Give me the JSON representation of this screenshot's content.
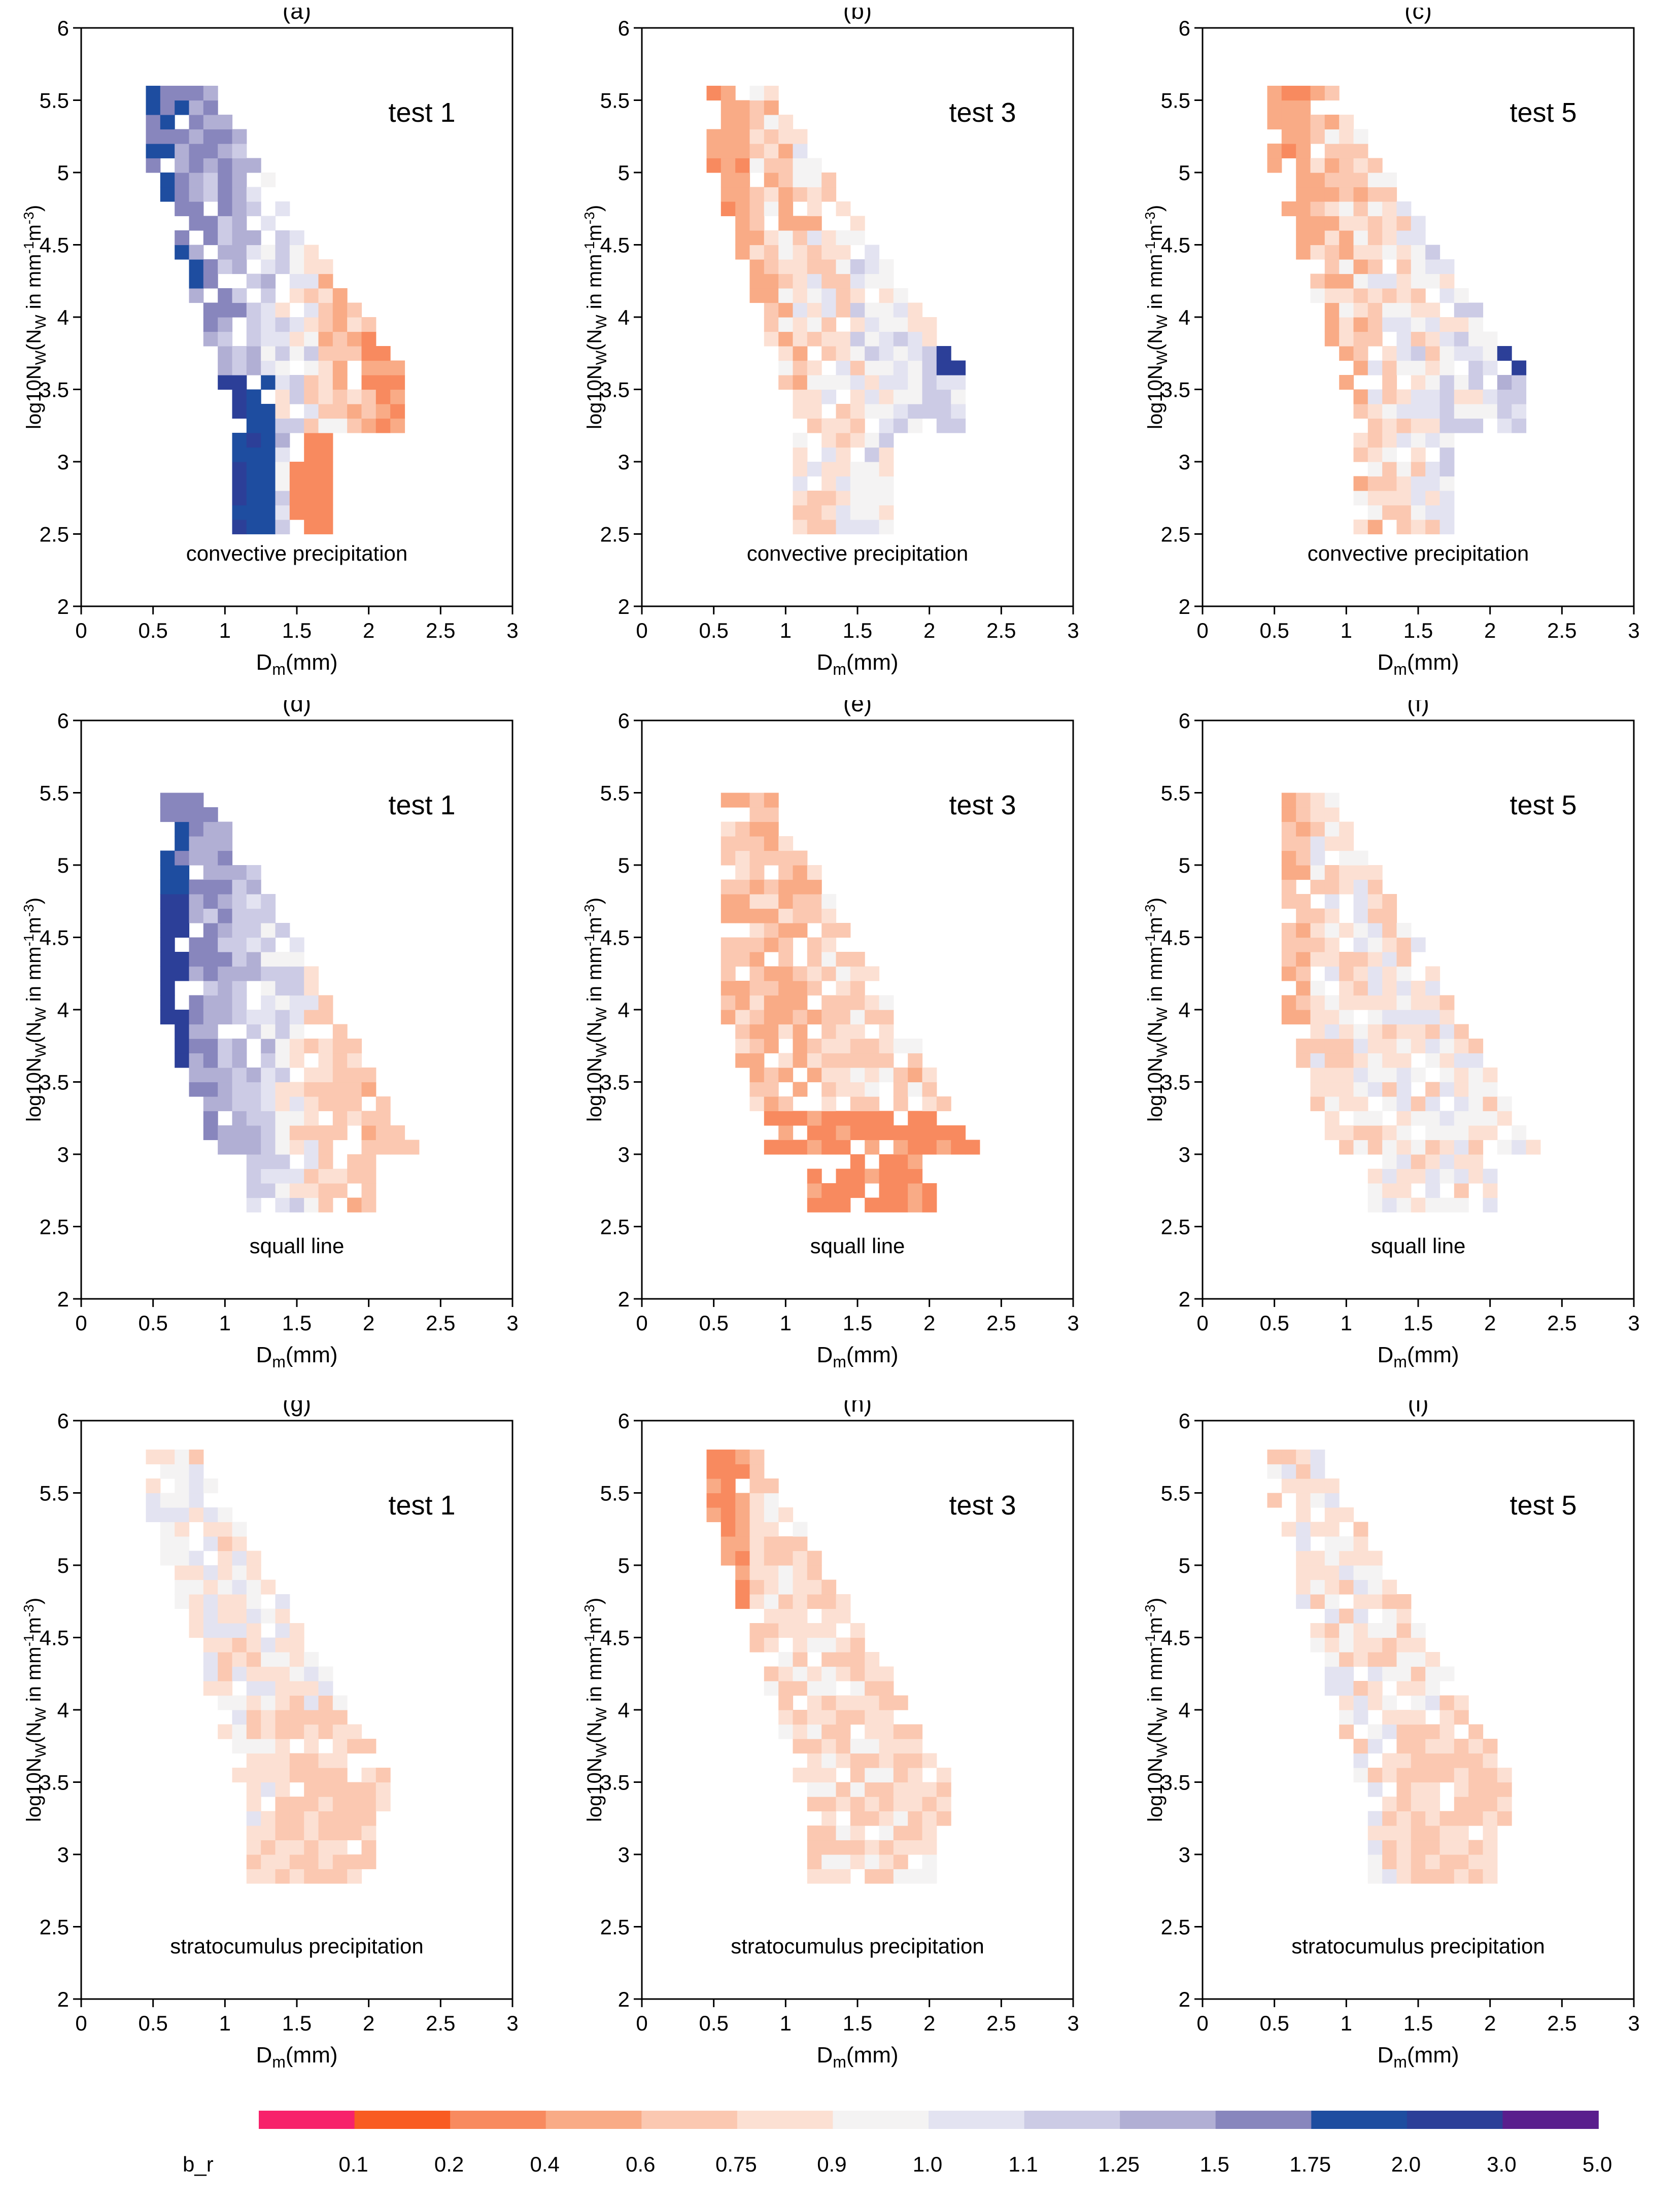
{
  "figure": {
    "x_label_main": "D",
    "x_label_sub": "m",
    "x_label_unit": "(mm)",
    "y_label_pre": "log10N",
    "y_label_sub": "W",
    "y_label_mid": "(N",
    "y_label_mid_sub": "W",
    "y_label_in": " in mm",
    "y_label_sup1": "-1",
    "y_label_m": "m",
    "y_label_sup2": "-3",
    "y_label_close": ")"
  },
  "legend": {
    "label": "b_r",
    "ticks": [
      "0.1",
      "0.2",
      "0.4",
      "0.6",
      "0.75",
      "0.9",
      "1.0",
      "1.1",
      "1.25",
      "1.5",
      "1.75",
      "2.0",
      "3.0",
      "5.0"
    ],
    "colors": [
      "#f7226b",
      "#f95b22",
      "#f88a5f",
      "#f9ab86",
      "#fbc8b1",
      "#fce0d3",
      "#f4f3f3",
      "#e3e3f1",
      "#cccbe5",
      "#b1afd4",
      "#8886bd",
      "#1e4da0",
      "#2c3f98",
      "#5a1e8d"
    ]
  },
  "chart_data": [
    {
      "type": "heatmap",
      "panel_label": "(a)",
      "test_label": "test 1",
      "regime": "convective precipitation",
      "xlim": [
        0,
        3
      ],
      "ylim": [
        2,
        6
      ],
      "x_ticks": [
        "0",
        "0.5",
        "1",
        "1.5",
        "2",
        "2.5",
        "3"
      ],
      "y_ticks": [
        "2",
        "2.5",
        "3",
        "3.5",
        "4",
        "4.5",
        "5",
        "5.5",
        "6"
      ]
    },
    {
      "type": "heatmap",
      "panel_label": "(b)",
      "test_label": "test 3",
      "regime": "convective precipitation",
      "xlim": [
        0,
        3
      ],
      "ylim": [
        2,
        6
      ],
      "x_ticks": [
        "0",
        "0.5",
        "1",
        "1.5",
        "2",
        "2.5",
        "3"
      ],
      "y_ticks": [
        "2",
        "2.5",
        "3",
        "3.5",
        "4",
        "4.5",
        "5",
        "5.5",
        "6"
      ]
    },
    {
      "type": "heatmap",
      "panel_label": "(c)",
      "test_label": "test 5",
      "regime": "convective precipitation",
      "xlim": [
        0,
        3
      ],
      "ylim": [
        2,
        6
      ],
      "x_ticks": [
        "0",
        "0.5",
        "1",
        "1.5",
        "2",
        "2.5",
        "3"
      ],
      "y_ticks": [
        "2",
        "2.5",
        "3",
        "3.5",
        "4",
        "4.5",
        "5",
        "5.5",
        "6"
      ]
    },
    {
      "type": "heatmap",
      "panel_label": "(d)",
      "test_label": "test 1",
      "regime": "squall line",
      "xlim": [
        0,
        3
      ],
      "ylim": [
        2,
        6
      ],
      "x_ticks": [
        "0",
        "0.5",
        "1",
        "1.5",
        "2",
        "2.5",
        "3"
      ],
      "y_ticks": [
        "2",
        "2.5",
        "3",
        "3.5",
        "4",
        "4.5",
        "5",
        "5.5",
        "6"
      ]
    },
    {
      "type": "heatmap",
      "panel_label": "(e)",
      "test_label": "test 3",
      "regime": "squall line",
      "xlim": [
        0,
        3
      ],
      "ylim": [
        2,
        6
      ],
      "x_ticks": [
        "0",
        "0.5",
        "1",
        "1.5",
        "2",
        "2.5",
        "3"
      ],
      "y_ticks": [
        "2",
        "2.5",
        "3",
        "3.5",
        "4",
        "4.5",
        "5",
        "5.5",
        "6"
      ]
    },
    {
      "type": "heatmap",
      "panel_label": "(f)",
      "test_label": "test 5",
      "regime": "squall line",
      "xlim": [
        0,
        3
      ],
      "ylim": [
        2,
        6
      ],
      "x_ticks": [
        "0",
        "0.5",
        "1",
        "1.5",
        "2",
        "2.5",
        "3"
      ],
      "y_ticks": [
        "2",
        "2.5",
        "3",
        "3.5",
        "4",
        "4.5",
        "5",
        "5.5",
        "6"
      ]
    },
    {
      "type": "heatmap",
      "panel_label": "(g)",
      "test_label": "test 1",
      "regime": "stratocumulus precipitation",
      "xlim": [
        0,
        3
      ],
      "ylim": [
        2,
        6
      ],
      "x_ticks": [
        "0",
        "0.5",
        "1",
        "1.5",
        "2",
        "2.5",
        "3"
      ],
      "y_ticks": [
        "2",
        "2.5",
        "3",
        "3.5",
        "4",
        "4.5",
        "5",
        "5.5",
        "6"
      ]
    },
    {
      "type": "heatmap",
      "panel_label": "(h)",
      "test_label": "test 3",
      "regime": "stratocumulus precipitation",
      "xlim": [
        0,
        3
      ],
      "ylim": [
        2,
        6
      ],
      "x_ticks": [
        "0",
        "0.5",
        "1",
        "1.5",
        "2",
        "2.5",
        "3"
      ],
      "y_ticks": [
        "2",
        "2.5",
        "3",
        "3.5",
        "4",
        "4.5",
        "5",
        "5.5",
        "6"
      ]
    },
    {
      "type": "heatmap",
      "panel_label": "(i)",
      "test_label": "test 5",
      "regime": "stratocumulus precipitation",
      "xlim": [
        0,
        3
      ],
      "ylim": [
        2,
        6
      ],
      "x_ticks": [
        "0",
        "0.5",
        "1",
        "1.5",
        "2",
        "2.5",
        "3"
      ],
      "y_ticks": [
        "2",
        "2.5",
        "3",
        "3.5",
        "4",
        "4.5",
        "5",
        "5.5",
        "6"
      ]
    }
  ]
}
